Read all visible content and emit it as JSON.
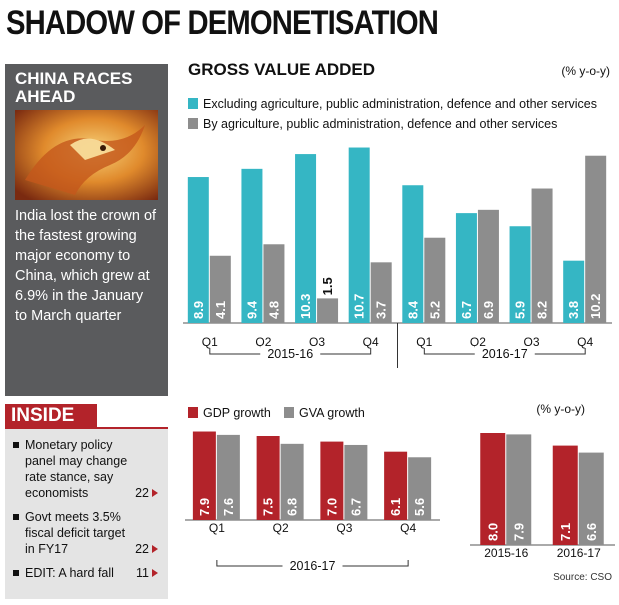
{
  "title": "SHADOW OF DEMONETISATION",
  "sidebar": {
    "heading": "CHINA RACES AHEAD",
    "text": "India lost the crown of the fastest growing major economy to China, which grew at 6.9% in the January to March quarter"
  },
  "inside": {
    "heading": "INSIDE",
    "items": [
      {
        "text": "Monetary policy panel may change rate stance, say economists",
        "page": 22
      },
      {
        "text": "Govt meets 3.5% fiscal deficit target in FY17",
        "page": 22
      },
      {
        "text": "EDIT: A hard fall",
        "page": 11
      }
    ]
  },
  "source": "Source: CSO",
  "chart_data": [
    {
      "type": "bar",
      "title": "GROSS VALUE ADDED",
      "unit": "(% y-o-y)",
      "categories": [
        "Q1",
        "Q2",
        "Q3",
        "Q4",
        "Q1",
        "Q2",
        "Q3",
        "Q4"
      ],
      "groups": [
        "2015-16",
        "2016-17"
      ],
      "series": [
        {
          "name": "Excluding agriculture, public administration, defence and other services",
          "color": "#35b6c4",
          "values": [
            8.9,
            9.4,
            10.3,
            10.7,
            8.4,
            6.7,
            5.9,
            3.8
          ]
        },
        {
          "name": "By agriculture, public administration, defence and other services",
          "color": "#8d8d8d",
          "values": [
            4.1,
            4.8,
            1.5,
            3.7,
            5.2,
            6.9,
            8.2,
            10.2
          ]
        }
      ]
    },
    {
      "type": "bar",
      "categories": [
        "Q1",
        "Q2",
        "Q3",
        "Q4"
      ],
      "groups": [
        "2016-17"
      ],
      "series": [
        {
          "name": "GDP growth",
          "color": "#b3232a",
          "values": [
            7.9,
            7.5,
            7.0,
            6.1
          ],
          "value_labels": [
            "7.9",
            "7.5",
            "7.0",
            "6.1"
          ]
        },
        {
          "name": "GVA growth",
          "color": "#8d8d8d",
          "values": [
            7.6,
            6.8,
            6.7,
            5.6
          ]
        }
      ]
    },
    {
      "type": "bar",
      "unit": "(% y-o-y)",
      "categories": [
        "2015-16",
        "2016-17"
      ],
      "series": [
        {
          "color": "#b3232a",
          "values": [
            8.0,
            7.1
          ],
          "value_labels": [
            "8.0",
            "7.1"
          ]
        },
        {
          "color": "#8d8d8d",
          "values": [
            7.9,
            6.6
          ]
        }
      ]
    }
  ]
}
